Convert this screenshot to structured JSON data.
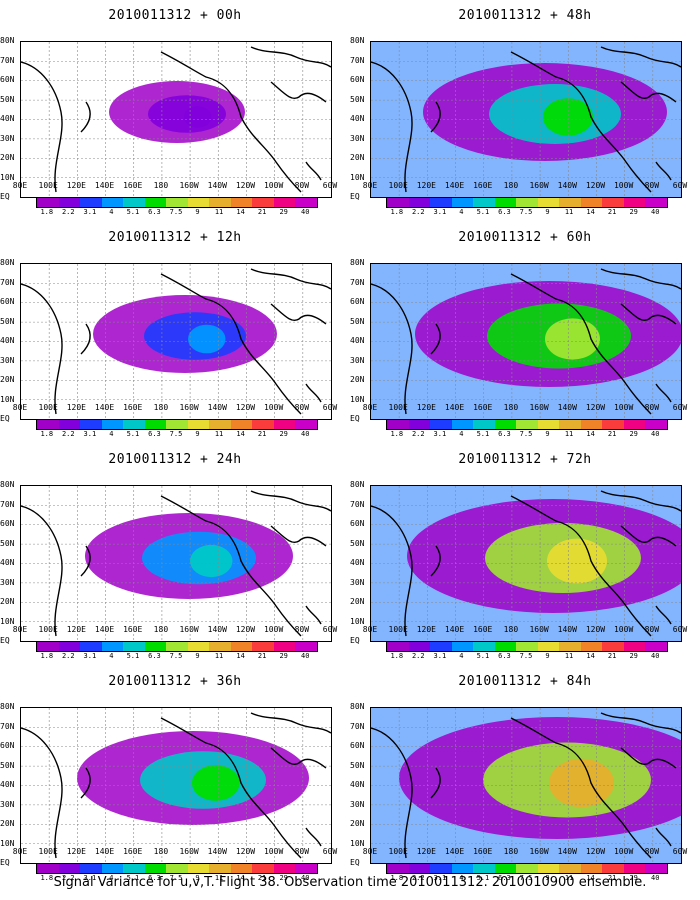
{
  "panels": [
    {
      "title": "2010011312 + 00h",
      "level": 0.15
    },
    {
      "title": "2010011312 + 48h",
      "level": 0.6
    },
    {
      "title": "2010011312 + 12h",
      "level": 0.35
    },
    {
      "title": "2010011312 + 60h",
      "level": 0.7
    },
    {
      "title": "2010011312 + 24h",
      "level": 0.45
    },
    {
      "title": "2010011312 + 72h",
      "level": 0.8
    },
    {
      "title": "2010011312 + 36h",
      "level": 0.55
    },
    {
      "title": "2010011312 + 84h",
      "level": 0.9
    }
  ],
  "lat_labels": [
    "80N",
    "70N",
    "60N",
    "50N",
    "40N",
    "30N",
    "20N",
    "10N",
    "EQ"
  ],
  "lon_labels": [
    "80E",
    "100E",
    "120E",
    "140E",
    "160E",
    "180",
    "160W",
    "140W",
    "120W",
    "100W",
    "80W",
    "60W"
  ],
  "colorbar": {
    "labels": [
      "1.8",
      "2.2",
      "3.1",
      "4",
      "5.1",
      "6.3",
      "7.5",
      "9",
      "11",
      "14",
      "21",
      "29",
      "40"
    ],
    "colors": [
      "#a000c8",
      "#8200dc",
      "#1e3cff",
      "#0096ff",
      "#00c8c8",
      "#00dc00",
      "#a0e632",
      "#e6dc32",
      "#e6af2d",
      "#f08228",
      "#fa3c3c",
      "#f00082",
      "#c800c8"
    ]
  },
  "caption": "Signal Variance for u,v,T. Flight 38. Observation time 2010011312. 2010010900 ensemble."
}
